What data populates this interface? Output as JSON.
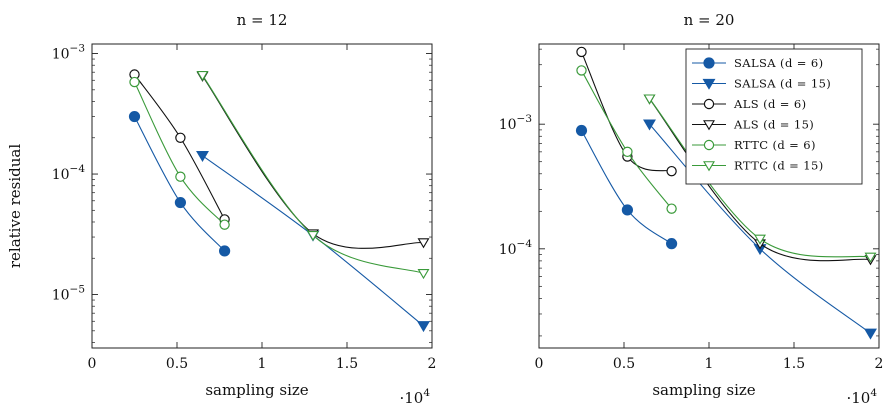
{
  "chart_data": [
    {
      "type": "line",
      "title": "n = 12",
      "xlabel": "sampling size",
      "ylabel": "relative residual",
      "x_scale_label": "·10",
      "x_scale_exp": "4",
      "xlim": [
        0,
        20000
      ],
      "ylim": [
        3.6e-06,
        0.0012
      ],
      "yscale": "log",
      "xticks": [
        0,
        5000,
        10000,
        15000,
        20000
      ],
      "xtick_labels": [
        "0",
        "0.5",
        "1",
        "1.5",
        "2"
      ],
      "yticks": [
        1e-05,
        0.0001,
        0.001
      ],
      "ytick_bases": [
        "10",
        "10",
        "10"
      ],
      "ytick_exps": [
        "−5",
        "−4",
        "−3"
      ],
      "legend": null,
      "series": [
        {
          "key": "salsa6",
          "name": "SALSA (d = 6)",
          "color": "#1559a5",
          "marker": "filled-circle",
          "x": [
            2500,
            5200,
            7800
          ],
          "y": [
            0.0003,
            5.8e-05,
            2.3e-05
          ]
        },
        {
          "key": "salsa15",
          "name": "SALSA (d = 15)",
          "color": "#1559a5",
          "marker": "filled-triangle-down",
          "x": [
            6500,
            13000,
            19500
          ],
          "y": [
            0.000142,
            3.1e-05,
            5.5e-06
          ]
        },
        {
          "key": "als6",
          "name": "ALS (d = 6)",
          "color": "#111111",
          "marker": "open-circle",
          "x": [
            2500,
            5200,
            7800
          ],
          "y": [
            0.00067,
            0.0002,
            4.2e-05
          ]
        },
        {
          "key": "als15",
          "name": "ALS (d = 15)",
          "color": "#111111",
          "marker": "open-triangle-down",
          "x": [
            6500,
            13000,
            19500
          ],
          "y": [
            0.00065,
            3.2e-05,
            2.7e-05
          ]
        },
        {
          "key": "rttc6",
          "name": "RTTC (d = 6)",
          "color": "#3a9a3a",
          "marker": "open-circle",
          "x": [
            2500,
            5200,
            7800
          ],
          "y": [
            0.00058,
            9.5e-05,
            3.8e-05
          ]
        },
        {
          "key": "rttc15",
          "name": "RTTC (d = 15)",
          "color": "#3a9a3a",
          "marker": "open-triangle-down",
          "x": [
            6500,
            13000,
            19500
          ],
          "y": [
            0.00066,
            3.1e-05,
            1.5e-05
          ]
        }
      ]
    },
    {
      "type": "line",
      "title": "n = 20",
      "xlabel": "sampling size",
      "ylabel": "",
      "x_scale_label": "·10",
      "x_scale_exp": "4",
      "xlim": [
        0,
        20000
      ],
      "ylim": [
        1.6e-05,
        0.0044
      ],
      "yscale": "log",
      "xticks": [
        0,
        5000,
        10000,
        15000,
        20000
      ],
      "xtick_labels": [
        "0",
        "0.5",
        "1",
        "1.5",
        "2"
      ],
      "yticks": [
        0.0001,
        0.001
      ],
      "ytick_bases": [
        "10",
        "10"
      ],
      "ytick_exps": [
        "−4",
        "−3"
      ],
      "legend": "top-right",
      "series": [
        {
          "key": "salsa6",
          "name": "SALSA (d = 6)",
          "color": "#1559a5",
          "marker": "filled-circle",
          "x": [
            2500,
            5200,
            7800
          ],
          "y": [
            0.00089,
            0.000205,
            0.00011
          ]
        },
        {
          "key": "salsa15",
          "name": "SALSA (d = 15)",
          "color": "#1559a5",
          "marker": "filled-triangle-down",
          "x": [
            6500,
            13000,
            19500
          ],
          "y": [
            0.001,
            0.0001,
            2.1e-05
          ]
        },
        {
          "key": "als6",
          "name": "ALS (d = 6)",
          "color": "#111111",
          "marker": "open-circle",
          "x": [
            2500,
            5200,
            7800
          ],
          "y": [
            0.0038,
            0.00055,
            0.00042
          ]
        },
        {
          "key": "als15",
          "name": "ALS (d = 15)",
          "color": "#111111",
          "marker": "open-triangle-down",
          "x": [
            6500,
            13000,
            19500
          ],
          "y": [
            0.0016,
            0.00011,
            8.2e-05
          ]
        },
        {
          "key": "rttc6",
          "name": "RTTC (d = 6)",
          "color": "#3a9a3a",
          "marker": "open-circle",
          "x": [
            2500,
            5200,
            7800
          ],
          "y": [
            0.0027,
            0.0006,
            0.00021
          ]
        },
        {
          "key": "rttc15",
          "name": "RTTC (d = 15)",
          "color": "#3a9a3a",
          "marker": "open-triangle-down",
          "x": [
            6500,
            13000,
            19500
          ],
          "y": [
            0.0016,
            0.00012,
            8.6e-05
          ]
        }
      ]
    }
  ]
}
